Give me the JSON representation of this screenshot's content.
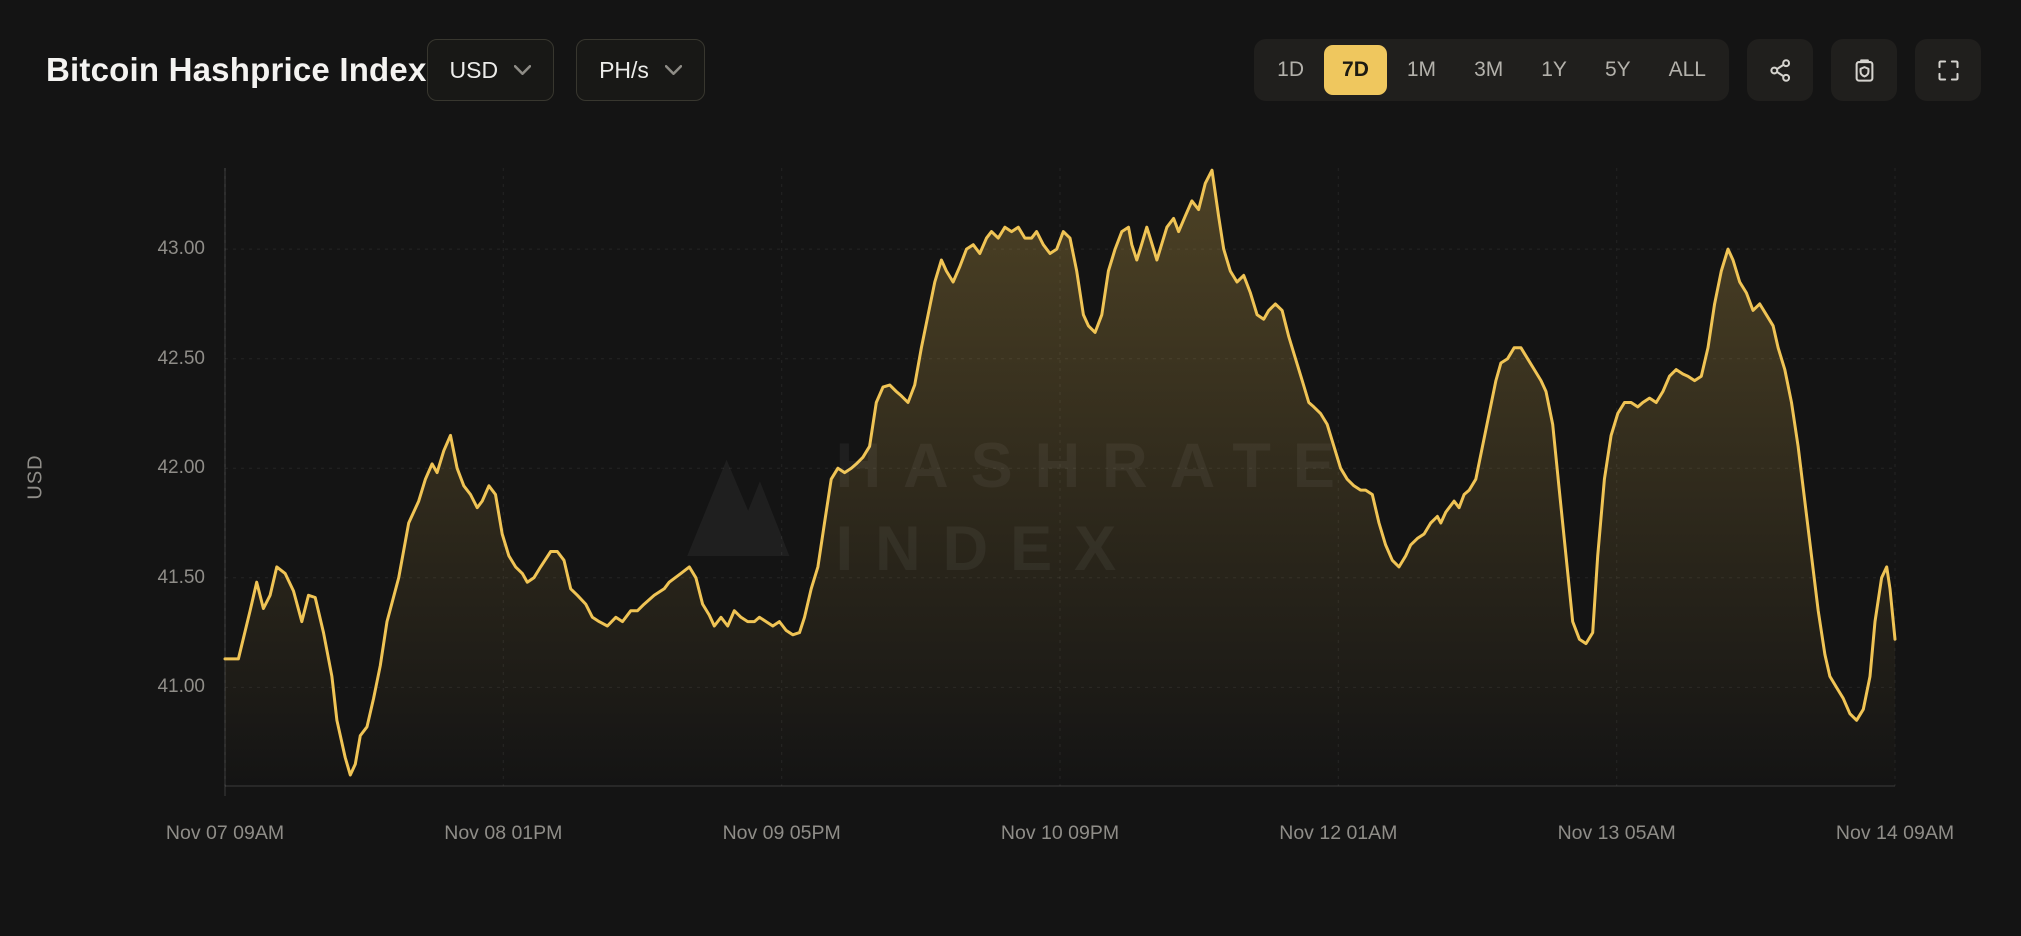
{
  "header": {
    "title": "Bitcoin Hashprice Index",
    "currency_dropdown": {
      "value": "USD"
    },
    "unit_dropdown": {
      "value": "PH/s"
    },
    "ranges": [
      {
        "label": "1D",
        "active": false
      },
      {
        "label": "7D",
        "active": true
      },
      {
        "label": "1M",
        "active": false
      },
      {
        "label": "3M",
        "active": false
      },
      {
        "label": "1Y",
        "active": false
      },
      {
        "label": "5Y",
        "active": false
      },
      {
        "label": "ALL",
        "active": false
      }
    ],
    "icon_buttons": [
      "share-icon",
      "clipboard-icon",
      "fullscreen-icon"
    ]
  },
  "colors": {
    "background": "#141414",
    "panel": "#201f1d",
    "accent": "#EFC75E",
    "line": "#F0C455",
    "area_top_opacity": 0.26,
    "muted_text": "#8f8d88"
  },
  "chart_data": {
    "type": "area",
    "title": "Bitcoin Hashprice Index",
    "ylabel": "USD",
    "ylim": [
      40.55,
      43.37
    ],
    "y_ticks": [
      41.0,
      41.5,
      42.0,
      42.5,
      43.0
    ],
    "x_tick_labels": [
      "Nov 07 09AM",
      "Nov 08 01PM",
      "Nov 09 05PM",
      "Nov 10 09PM",
      "Nov 12 01AM",
      "Nov 13 05AM",
      "Nov 14 09AM"
    ],
    "watermark_lines": [
      "HASHRATE",
      "INDEX"
    ],
    "grid": true,
    "legend": false,
    "series": [
      {
        "name": "hashprice",
        "points": [
          [
            0.0,
            41.13
          ],
          [
            0.008,
            41.13
          ],
          [
            0.015,
            41.35
          ],
          [
            0.019,
            41.48
          ],
          [
            0.023,
            41.36
          ],
          [
            0.027,
            41.42
          ],
          [
            0.031,
            41.55
          ],
          [
            0.036,
            41.52
          ],
          [
            0.041,
            41.44
          ],
          [
            0.046,
            41.3
          ],
          [
            0.05,
            41.42
          ],
          [
            0.054,
            41.41
          ],
          [
            0.059,
            41.25
          ],
          [
            0.064,
            41.05
          ],
          [
            0.067,
            40.85
          ],
          [
            0.072,
            40.68
          ],
          [
            0.075,
            40.6
          ],
          [
            0.078,
            40.65
          ],
          [
            0.081,
            40.78
          ],
          [
            0.085,
            40.82
          ],
          [
            0.089,
            40.95
          ],
          [
            0.093,
            41.1
          ],
          [
            0.097,
            41.3
          ],
          [
            0.104,
            41.5
          ],
          [
            0.11,
            41.75
          ],
          [
            0.116,
            41.85
          ],
          [
            0.12,
            41.95
          ],
          [
            0.124,
            42.02
          ],
          [
            0.127,
            41.98
          ],
          [
            0.131,
            42.08
          ],
          [
            0.135,
            42.15
          ],
          [
            0.139,
            42.0
          ],
          [
            0.143,
            41.92
          ],
          [
            0.147,
            41.88
          ],
          [
            0.151,
            41.82
          ],
          [
            0.154,
            41.85
          ],
          [
            0.158,
            41.92
          ],
          [
            0.162,
            41.88
          ],
          [
            0.166,
            41.7
          ],
          [
            0.17,
            41.6
          ],
          [
            0.174,
            41.55
          ],
          [
            0.178,
            41.52
          ],
          [
            0.181,
            41.48
          ],
          [
            0.185,
            41.5
          ],
          [
            0.189,
            41.55
          ],
          [
            0.195,
            41.62
          ],
          [
            0.199,
            41.62
          ],
          [
            0.203,
            41.58
          ],
          [
            0.207,
            41.45
          ],
          [
            0.211,
            41.42
          ],
          [
            0.216,
            41.38
          ],
          [
            0.22,
            41.32
          ],
          [
            0.224,
            41.3
          ],
          [
            0.229,
            41.28
          ],
          [
            0.234,
            41.32
          ],
          [
            0.238,
            41.3
          ],
          [
            0.243,
            41.35
          ],
          [
            0.247,
            41.35
          ],
          [
            0.251,
            41.38
          ],
          [
            0.257,
            41.42
          ],
          [
            0.263,
            41.45
          ],
          [
            0.266,
            41.48
          ],
          [
            0.273,
            41.52
          ],
          [
            0.278,
            41.55
          ],
          [
            0.282,
            41.5
          ],
          [
            0.286,
            41.38
          ],
          [
            0.29,
            41.33
          ],
          [
            0.293,
            41.28
          ],
          [
            0.297,
            41.32
          ],
          [
            0.301,
            41.28
          ],
          [
            0.305,
            41.35
          ],
          [
            0.309,
            41.32
          ],
          [
            0.313,
            41.3
          ],
          [
            0.317,
            41.3
          ],
          [
            0.32,
            41.32
          ],
          [
            0.324,
            41.3
          ],
          [
            0.328,
            41.28
          ],
          [
            0.332,
            41.3
          ],
          [
            0.336,
            41.26
          ],
          [
            0.34,
            41.24
          ],
          [
            0.344,
            41.25
          ],
          [
            0.347,
            41.32
          ],
          [
            0.351,
            41.45
          ],
          [
            0.355,
            41.55
          ],
          [
            0.359,
            41.75
          ],
          [
            0.363,
            41.95
          ],
          [
            0.367,
            42.0
          ],
          [
            0.371,
            41.98
          ],
          [
            0.375,
            42.0
          ],
          [
            0.378,
            42.02
          ],
          [
            0.382,
            42.05
          ],
          [
            0.386,
            42.1
          ],
          [
            0.39,
            42.3
          ],
          [
            0.394,
            42.37
          ],
          [
            0.398,
            42.38
          ],
          [
            0.402,
            42.35
          ],
          [
            0.405,
            42.33
          ],
          [
            0.409,
            42.3
          ],
          [
            0.413,
            42.38
          ],
          [
            0.417,
            42.55
          ],
          [
            0.421,
            42.7
          ],
          [
            0.425,
            42.85
          ],
          [
            0.429,
            42.95
          ],
          [
            0.432,
            42.9
          ],
          [
            0.436,
            42.85
          ],
          [
            0.44,
            42.92
          ],
          [
            0.444,
            43.0
          ],
          [
            0.448,
            43.02
          ],
          [
            0.452,
            42.98
          ],
          [
            0.456,
            43.05
          ],
          [
            0.459,
            43.08
          ],
          [
            0.463,
            43.05
          ],
          [
            0.467,
            43.1
          ],
          [
            0.471,
            43.08
          ],
          [
            0.475,
            43.1
          ],
          [
            0.479,
            43.05
          ],
          [
            0.483,
            43.05
          ],
          [
            0.486,
            43.08
          ],
          [
            0.49,
            43.02
          ],
          [
            0.494,
            42.98
          ],
          [
            0.498,
            43.0
          ],
          [
            0.502,
            43.08
          ],
          [
            0.506,
            43.05
          ],
          [
            0.51,
            42.9
          ],
          [
            0.514,
            42.7
          ],
          [
            0.517,
            42.65
          ],
          [
            0.521,
            42.62
          ],
          [
            0.525,
            42.7
          ],
          [
            0.529,
            42.9
          ],
          [
            0.533,
            43.0
          ],
          [
            0.537,
            43.08
          ],
          [
            0.541,
            43.1
          ],
          [
            0.543,
            43.02
          ],
          [
            0.546,
            42.95
          ],
          [
            0.548,
            43.0
          ],
          [
            0.552,
            43.1
          ],
          [
            0.554,
            43.05
          ],
          [
            0.558,
            42.95
          ],
          [
            0.56,
            43.0
          ],
          [
            0.564,
            43.1
          ],
          [
            0.568,
            43.14
          ],
          [
            0.571,
            43.08
          ],
          [
            0.575,
            43.15
          ],
          [
            0.579,
            43.22
          ],
          [
            0.583,
            43.18
          ],
          [
            0.587,
            43.3
          ],
          [
            0.591,
            43.36
          ],
          [
            0.595,
            43.15
          ],
          [
            0.598,
            43.0
          ],
          [
            0.602,
            42.9
          ],
          [
            0.606,
            42.85
          ],
          [
            0.61,
            42.88
          ],
          [
            0.614,
            42.8
          ],
          [
            0.618,
            42.7
          ],
          [
            0.622,
            42.68
          ],
          [
            0.625,
            42.72
          ],
          [
            0.629,
            42.75
          ],
          [
            0.633,
            42.72
          ],
          [
            0.637,
            42.6
          ],
          [
            0.641,
            42.5
          ],
          [
            0.645,
            42.4
          ],
          [
            0.649,
            42.3
          ],
          [
            0.652,
            42.28
          ],
          [
            0.656,
            42.25
          ],
          [
            0.66,
            42.2
          ],
          [
            0.664,
            42.1
          ],
          [
            0.668,
            42.0
          ],
          [
            0.672,
            41.95
          ],
          [
            0.676,
            41.92
          ],
          [
            0.68,
            41.9
          ],
          [
            0.683,
            41.9
          ],
          [
            0.687,
            41.88
          ],
          [
            0.691,
            41.75
          ],
          [
            0.695,
            41.65
          ],
          [
            0.699,
            41.58
          ],
          [
            0.703,
            41.55
          ],
          [
            0.707,
            41.6
          ],
          [
            0.71,
            41.65
          ],
          [
            0.714,
            41.68
          ],
          [
            0.718,
            41.7
          ],
          [
            0.722,
            41.75
          ],
          [
            0.726,
            41.78
          ],
          [
            0.728,
            41.75
          ],
          [
            0.731,
            41.8
          ],
          [
            0.736,
            41.85
          ],
          [
            0.739,
            41.82
          ],
          [
            0.742,
            41.88
          ],
          [
            0.745,
            41.9
          ],
          [
            0.749,
            41.95
          ],
          [
            0.753,
            42.1
          ],
          [
            0.757,
            42.25
          ],
          [
            0.761,
            42.4
          ],
          [
            0.764,
            42.48
          ],
          [
            0.768,
            42.5
          ],
          [
            0.772,
            42.55
          ],
          [
            0.776,
            42.55
          ],
          [
            0.78,
            42.5
          ],
          [
            0.784,
            42.45
          ],
          [
            0.788,
            42.4
          ],
          [
            0.791,
            42.35
          ],
          [
            0.795,
            42.2
          ],
          [
            0.799,
            41.9
          ],
          [
            0.803,
            41.6
          ],
          [
            0.807,
            41.3
          ],
          [
            0.811,
            41.22
          ],
          [
            0.815,
            41.2
          ],
          [
            0.819,
            41.25
          ],
          [
            0.822,
            41.6
          ],
          [
            0.826,
            41.95
          ],
          [
            0.83,
            42.15
          ],
          [
            0.834,
            42.25
          ],
          [
            0.838,
            42.3
          ],
          [
            0.842,
            42.3
          ],
          [
            0.846,
            42.28
          ],
          [
            0.849,
            42.3
          ],
          [
            0.853,
            42.32
          ],
          [
            0.857,
            42.3
          ],
          [
            0.861,
            42.35
          ],
          [
            0.865,
            42.42
          ],
          [
            0.869,
            42.45
          ],
          [
            0.873,
            42.43
          ],
          [
            0.876,
            42.42
          ],
          [
            0.88,
            42.4
          ],
          [
            0.884,
            42.42
          ],
          [
            0.888,
            42.55
          ],
          [
            0.892,
            42.75
          ],
          [
            0.896,
            42.9
          ],
          [
            0.9,
            43.0
          ],
          [
            0.903,
            42.95
          ],
          [
            0.907,
            42.85
          ],
          [
            0.911,
            42.8
          ],
          [
            0.915,
            42.72
          ],
          [
            0.919,
            42.75
          ],
          [
            0.923,
            42.7
          ],
          [
            0.927,
            42.65
          ],
          [
            0.93,
            42.55
          ],
          [
            0.934,
            42.45
          ],
          [
            0.938,
            42.3
          ],
          [
            0.942,
            42.1
          ],
          [
            0.946,
            41.85
          ],
          [
            0.95,
            41.6
          ],
          [
            0.954,
            41.35
          ],
          [
            0.958,
            41.15
          ],
          [
            0.961,
            41.05
          ],
          [
            0.965,
            41.0
          ],
          [
            0.969,
            40.95
          ],
          [
            0.973,
            40.88
          ],
          [
            0.977,
            40.85
          ],
          [
            0.981,
            40.9
          ],
          [
            0.985,
            41.05
          ],
          [
            0.988,
            41.3
          ],
          [
            0.992,
            41.5
          ],
          [
            0.995,
            41.55
          ],
          [
            0.997,
            41.45
          ],
          [
            1.0,
            41.22
          ]
        ]
      }
    ]
  }
}
